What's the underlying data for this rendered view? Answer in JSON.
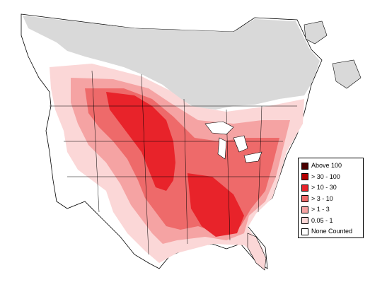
{
  "map": {
    "region": "North America",
    "colors": {
      "background": "#ffffff",
      "not_surveyed": "#d9d9d9",
      "border": "#000000"
    }
  },
  "legend": {
    "items": [
      {
        "label": "Above 100",
        "color": "#4a0000"
      },
      {
        "label": "> 30 - 100",
        "color": "#b30000"
      },
      {
        "label": "> 10 - 30",
        "color": "#e8232a"
      },
      {
        "label": "> 3 - 10",
        "color": "#ee6a6a"
      },
      {
        "label": "> 1 - 3",
        "color": "#f5a3a3"
      },
      {
        "label": "0.05 - 1",
        "color": "#fbd7d7"
      },
      {
        "label": "None Counted",
        "color": "#ffffff"
      }
    ]
  }
}
